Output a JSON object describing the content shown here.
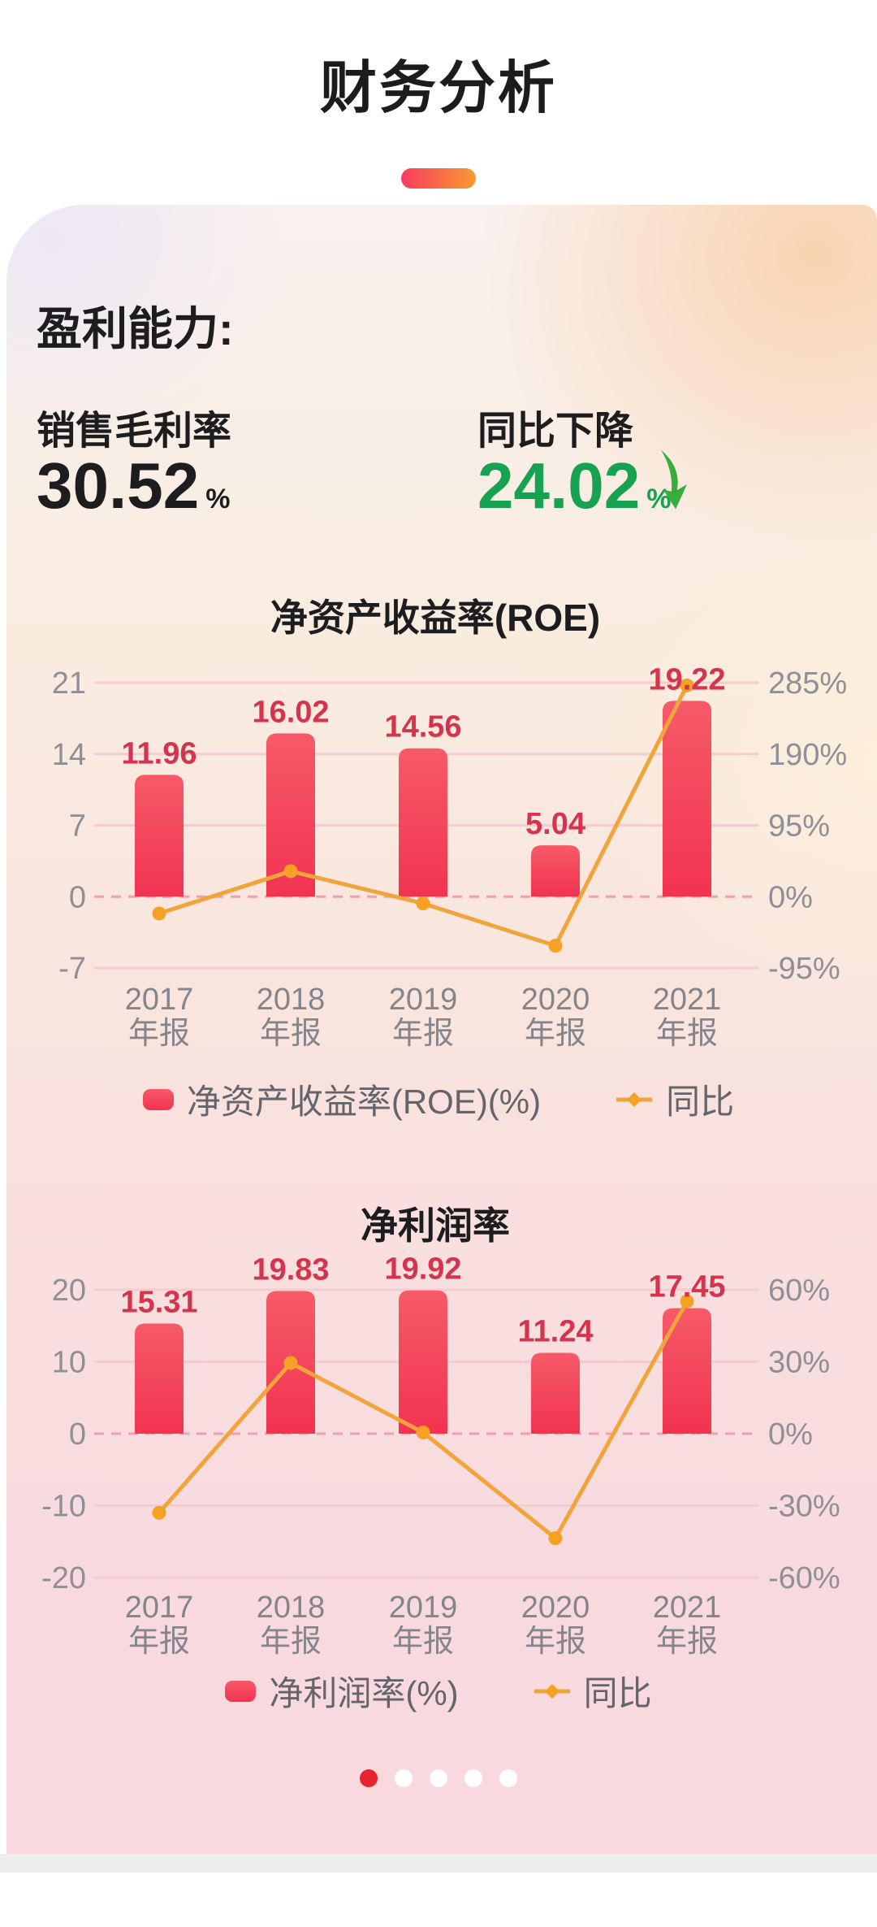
{
  "header": {
    "title": "财务分析"
  },
  "card": {
    "section_label": "盈利能力:",
    "stats": [
      {
        "label": "销售毛利率",
        "value": "30.52",
        "unit": "%"
      },
      {
        "label": "同比下降",
        "value": "24.02",
        "unit": "%",
        "trend": "down"
      }
    ]
  },
  "chart_data": [
    {
      "type": "bar+line",
      "title": "净资产收益率(ROE)",
      "categories": [
        "2017",
        "2018",
        "2019",
        "2020",
        "2021"
      ],
      "category_suffix": "年报",
      "bar_series": {
        "name": "净资产收益率(ROE)(%)",
        "values": [
          11.96,
          16.02,
          14.56,
          5.04,
          19.22
        ],
        "labels": [
          "11.96",
          "16.02",
          "14.56",
          "5.04",
          "19.22"
        ]
      },
      "line_series": {
        "name": "同比",
        "yoy_pct_values": [
          -22.4,
          33.9,
          -9.1,
          -65.4,
          281.3
        ]
      },
      "left_axis_ticks": [
        21,
        14,
        7,
        0,
        -7
      ],
      "right_axis_ticks_pct": [
        285,
        190,
        95,
        0,
        -95
      ],
      "legend_position": "bottom",
      "grid": true
    },
    {
      "type": "bar+line",
      "title": "净利润率",
      "categories": [
        "2017",
        "2018",
        "2019",
        "2020",
        "2021"
      ],
      "category_suffix": "年报",
      "bar_series": {
        "name": "净利润率(%)",
        "values": [
          15.31,
          19.83,
          19.92,
          11.24,
          17.45
        ],
        "labels": [
          "15.31",
          "19.83",
          "19.92",
          "11.24",
          "17.45"
        ]
      },
      "line_series": {
        "name": "同比",
        "yoy_pct_values": [
          -33.0,
          29.5,
          0.5,
          -43.6,
          55.2
        ]
      },
      "left_axis_ticks": [
        20,
        10,
        0,
        -10,
        -20
      ],
      "right_axis_ticks_pct": [
        60,
        30,
        0,
        -30,
        -60
      ],
      "legend_position": "bottom",
      "grid": true
    }
  ],
  "pagination": {
    "total": 5,
    "active": 0
  },
  "colors": {
    "bar_top": "#f65a68",
    "bar_bottom": "#f23350",
    "bar_label": "#d4344e",
    "line": "#f1a43c",
    "point": "#f4a124",
    "grid": "#f3cbd0",
    "zero_grid": "#efa0ad",
    "axis_text": "#8f8f98",
    "x_text": "#84848c",
    "green": "#17a251",
    "arrow_green": "#38ad3c",
    "active_dot": "#e8232e",
    "accent_pill_left": "#fa3b5e",
    "accent_pill_right": "#f79a31"
  }
}
